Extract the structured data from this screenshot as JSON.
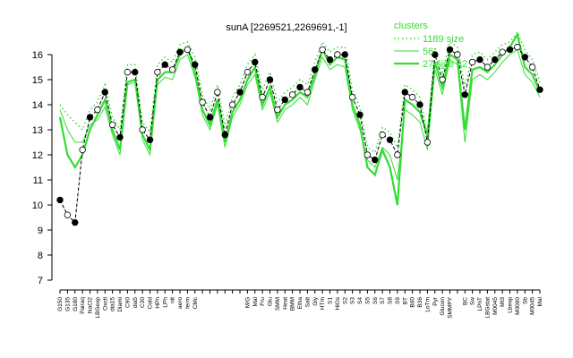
{
  "chart_data": {
    "type": "line",
    "title": "sunA [2269521,2269691,-1]",
    "legend_title": "clusters",
    "legend_position": "top-right",
    "categories": [
      "G150",
      "G135",
      "G180",
      "Pairaq",
      "NaCl2",
      "LBGexp",
      "Oxctl",
      "dia15",
      "Diami",
      "C90",
      "dia5",
      "C30",
      "Cold",
      "HPh",
      "LPh",
      "nit",
      "aero",
      "ferm",
      "CMc",
      null,
      null,
      null,
      null,
      null,
      null,
      "M/G",
      "Mal",
      "Fru",
      "Glu",
      "SMM",
      "Heat",
      "BMM",
      "Etha",
      "Salt",
      "Gly",
      "HTm",
      "S1",
      "HiOs",
      "S2",
      "S3",
      "S4",
      "S5",
      "S6",
      "S7",
      "S8",
      "S9",
      "BT",
      "B60",
      "B36",
      "LoTm",
      "Pyr",
      "Glucon",
      "SMMPY",
      null,
      "BC",
      "Sw",
      "LPhT",
      "LBGstat",
      "M0045",
      "Mt3",
      "Lbexp",
      "M0090",
      "Sb",
      "M0045",
      "Mal"
    ],
    "ylim": [
      7,
      16
    ],
    "yticks": [
      7,
      8,
      9,
      10,
      11,
      12,
      13,
      14,
      15,
      16
    ],
    "series": [
      {
        "name": "sunA",
        "color": "#000000",
        "style": "points",
        "values": [
          10.2,
          9.6,
          9.3,
          12.2,
          13.5,
          13.8,
          14.5,
          13.2,
          12.7,
          15.3,
          15.3,
          13.0,
          12.6,
          15.3,
          15.6,
          15.4,
          16.1,
          16.2,
          15.6,
          14.1,
          13.5,
          14.5,
          12.8,
          14.0,
          14.5,
          15.3,
          15.7,
          14.3,
          15.0,
          13.8,
          14.2,
          14.4,
          14.7,
          14.5,
          15.4,
          16.2,
          15.8,
          16.0,
          16.0,
          14.3,
          13.6,
          12.0,
          11.8,
          12.8,
          12.6,
          12.0,
          14.5,
          14.3,
          14.0,
          12.5,
          16.0,
          15.0,
          16.2,
          16.0,
          14.4,
          15.7,
          15.8,
          15.5,
          15.8,
          16.1,
          16.2,
          16.3,
          15.9,
          15.5,
          14.6
        ]
      },
      {
        "name": "1189 size",
        "color": "#33dd33",
        "style": "dotted",
        "values": [
          14.0,
          13.6,
          13.3,
          13.0,
          13.8,
          14.1,
          14.8,
          13.5,
          13.0,
          15.6,
          15.6,
          13.3,
          12.9,
          15.6,
          15.9,
          15.7,
          16.4,
          16.5,
          15.9,
          14.4,
          13.8,
          14.8,
          13.1,
          14.3,
          14.8,
          15.6,
          16.0,
          14.6,
          15.3,
          14.1,
          14.5,
          14.7,
          15.0,
          14.8,
          15.7,
          16.5,
          16.1,
          16.3,
          16.3,
          14.6,
          13.9,
          12.3,
          12.1,
          13.1,
          12.9,
          12.3,
          14.8,
          14.6,
          14.3,
          12.8,
          16.3,
          15.3,
          16.5,
          16.3,
          14.7,
          16.0,
          16.1,
          15.8,
          16.1,
          16.4,
          16.5,
          16.9,
          16.2,
          15.8,
          14.9
        ]
      },
      {
        "name": "56",
        "color": "#33dd33",
        "style": "thin",
        "values": [
          13.8,
          13.0,
          12.5,
          12.5,
          13.2,
          13.4,
          13.9,
          12.8,
          12.0,
          14.8,
          14.9,
          12.6,
          12.0,
          14.8,
          15.1,
          15.0,
          15.8,
          16.0,
          15.1,
          13.6,
          13.0,
          14.0,
          12.3,
          13.5,
          14.0,
          14.8,
          15.2,
          13.8,
          14.5,
          13.3,
          13.8,
          14.0,
          14.3,
          14.0,
          15.0,
          15.9,
          15.4,
          15.6,
          15.5,
          13.8,
          13.0,
          11.8,
          11.5,
          12.3,
          12.0,
          11.0,
          13.8,
          13.6,
          13.3,
          12.2,
          15.4,
          14.4,
          15.8,
          15.6,
          12.5,
          15.0,
          15.2,
          15.0,
          15.3,
          15.7,
          16.0,
          16.2,
          15.2,
          14.9,
          14.3
        ]
      },
      {
        "name": "27 size 82",
        "color": "#33dd33",
        "style": "thick",
        "values": [
          13.5,
          12.0,
          11.5,
          12.0,
          13.0,
          13.6,
          14.2,
          13.0,
          12.2,
          14.9,
          15.0,
          12.8,
          12.2,
          15.0,
          15.3,
          15.3,
          16.0,
          16.3,
          15.3,
          13.8,
          13.2,
          14.2,
          12.5,
          13.7,
          14.2,
          15.0,
          15.5,
          14.0,
          14.7,
          13.5,
          14.0,
          14.2,
          14.5,
          14.3,
          15.2,
          16.2,
          15.6,
          15.9,
          15.8,
          14.0,
          13.2,
          11.5,
          11.2,
          12.2,
          11.5,
          10.0,
          14.2,
          14.0,
          13.7,
          12.8,
          15.7,
          14.7,
          16.0,
          15.8,
          13.0,
          15.4,
          15.5,
          15.3,
          15.6,
          16.0,
          16.3,
          16.8,
          15.5,
          15.2,
          14.5
        ]
      }
    ]
  }
}
